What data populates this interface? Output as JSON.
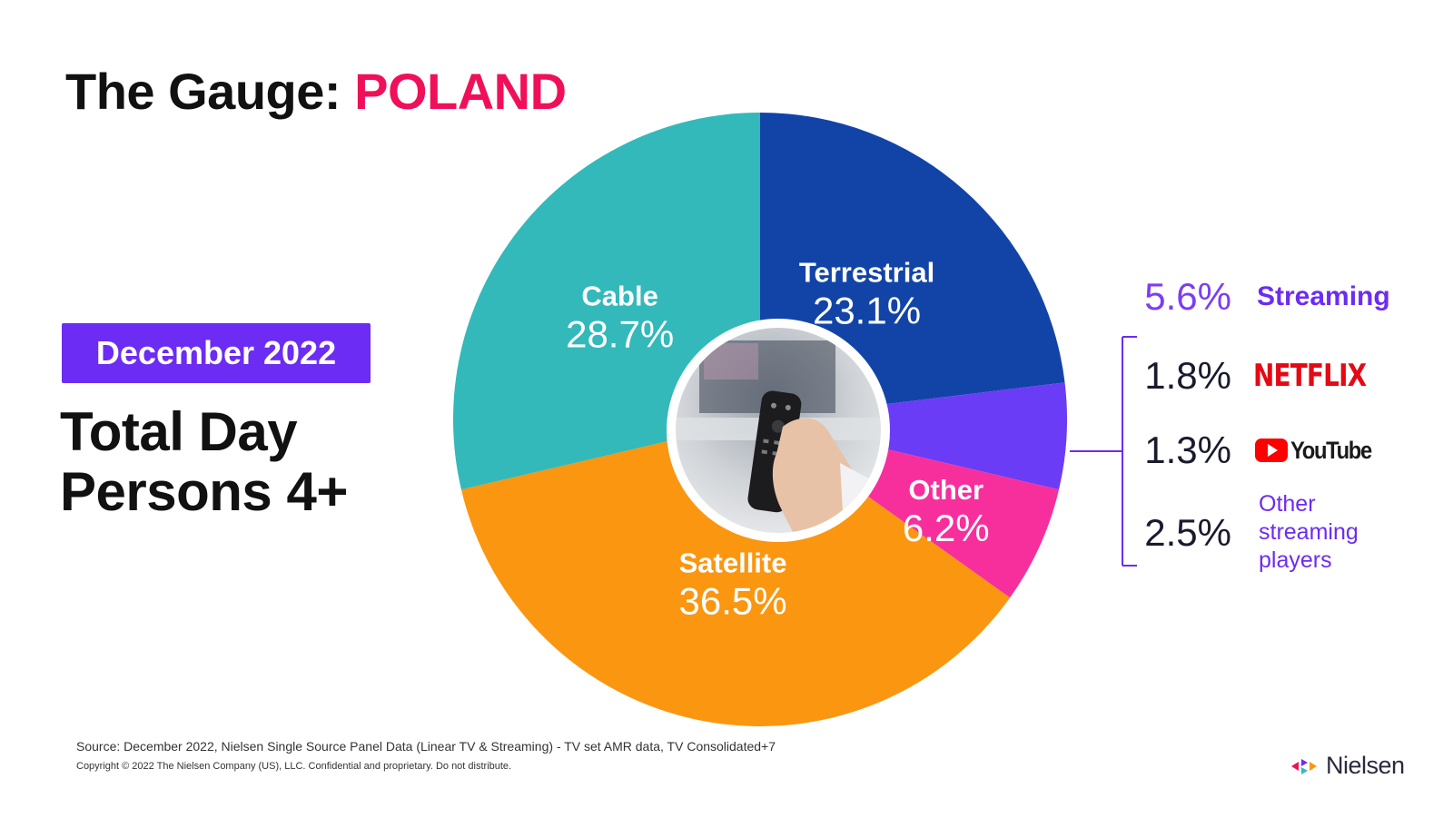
{
  "title": {
    "prefix": "The Gauge: ",
    "country": "POLAND"
  },
  "badge": "December 2022",
  "subtitle": {
    "line1": "Total Day",
    "line2": "Persons 4+"
  },
  "colors": {
    "terrestrial": "#1244a8",
    "streaming": "#6a3cf5",
    "other": "#f72f9d",
    "satellite": "#fb9611",
    "cable": "#33b9ba",
    "accent": "#f0105a",
    "badge": "#6c2cf3"
  },
  "chart_data": {
    "type": "pie",
    "categories": [
      "Terrestrial",
      "Streaming",
      "Other",
      "Satellite",
      "Cable"
    ],
    "values": [
      23.1,
      5.6,
      6.2,
      36.5,
      28.7
    ],
    "labels": [
      "Terrestrial",
      "",
      "Other",
      "Satellite",
      "Cable"
    ],
    "value_labels": [
      "23.1%",
      "",
      "6.2%",
      "36.5%",
      "28.7%"
    ],
    "style": "donut with photo of TV remote in center",
    "streaming_breakdown": [
      {
        "value": 1.8,
        "label": "1.8%",
        "name": "NETFLIX"
      },
      {
        "value": 1.3,
        "label": "1.3%",
        "name": "YouTube"
      },
      {
        "value": 2.5,
        "label": "2.5%",
        "name": "Other streaming players"
      }
    ]
  },
  "streaming": {
    "value_label": "5.6%",
    "name": "Streaming"
  },
  "breakdown": {
    "netflix": {
      "value_label": "1.8%",
      "brand": "NETFLIX"
    },
    "youtube": {
      "value_label": "1.3%",
      "brand": "YouTube"
    },
    "other": {
      "value_label": "2.5%",
      "line1": "Other",
      "line2": "streaming",
      "line3": "players"
    }
  },
  "footer": {
    "source": "Source: December 2022, Nielsen Single Source Panel Data (Linear TV & Streaming) - TV set AMR data, TV Consolidated+7",
    "copyright": "Copyright © 2022 The Nielsen Company (US), LLC. Confidential and proprietary. Do not distribute."
  },
  "brand": "Nielsen"
}
